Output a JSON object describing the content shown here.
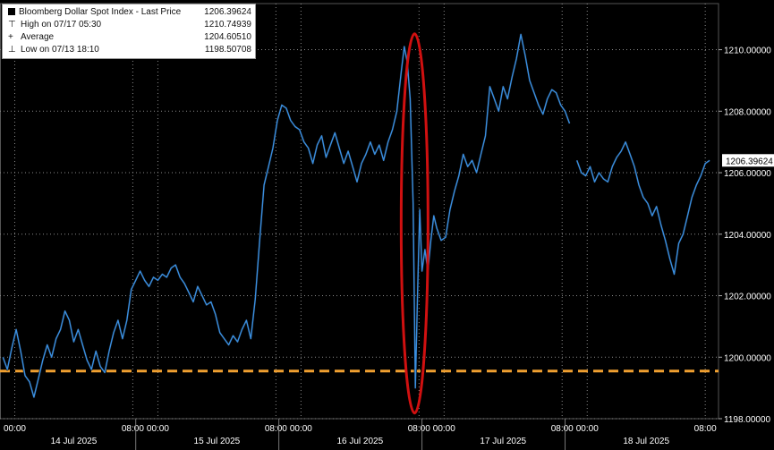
{
  "legend": {
    "title": "Bloomberg Dollar Spot Index - Last Price",
    "last_value": "1206.39624",
    "rows": [
      {
        "label": "High on 07/17 05:30",
        "value": "1210.74939",
        "marker": "⊤"
      },
      {
        "label": "Average",
        "value": "1204.60510",
        "marker": "+"
      },
      {
        "label": "Low on 07/13 18:10",
        "value": "1198.50708",
        "marker": "⊥"
      }
    ]
  },
  "colors": {
    "background": "#000000",
    "price_line": "#3a8fe0",
    "price_line_dark": "#0b0f14",
    "reference_line": "#f0a030",
    "highlight_ellipse": "#d01010",
    "grid": "#8a8a8a",
    "axis_text": "#ffffff"
  },
  "chart_data": {
    "type": "line",
    "title": "Bloomberg Dollar Spot Index - Last Price",
    "xlabel": "",
    "ylabel": "",
    "ylim": [
      1198.0,
      1211.5
    ],
    "y_ticks": [
      "1198.00000",
      "1200.00000",
      "1202.00000",
      "1204.00000",
      "1206.00000",
      "1208.00000",
      "1210.00000"
    ],
    "y_tick_values": [
      1198,
      1200,
      1202,
      1204,
      1206,
      1208,
      1210
    ],
    "last_price_label": "1206.39624",
    "x_time_labels": [
      "00:00",
      "08:00",
      "00:00",
      "08:00",
      "00:00",
      "08:00",
      "00:00",
      "08:00",
      "00:00",
      "08:00"
    ],
    "x_day_labels": [
      "14 Jul 2025",
      "15 Jul 2025",
      "16 Jul 2025",
      "17 Jul 2025",
      "18 Jul 2025"
    ],
    "grid": true,
    "reference_line": {
      "value": 1199.55,
      "style": "dashed"
    },
    "highlight": {
      "shape": "ellipse",
      "around": "16 Jul 2025 08:00 spike"
    },
    "series": [
      {
        "points": [
          [
            0.0,
            1200.0
          ],
          [
            0.3,
            1199.6
          ],
          [
            0.6,
            1200.3
          ],
          [
            0.9,
            1200.9
          ],
          [
            1.2,
            1200.2
          ],
          [
            1.5,
            1199.4
          ],
          [
            1.8,
            1199.2
          ],
          [
            2.1,
            1198.7
          ],
          [
            2.4,
            1199.3
          ],
          [
            2.7,
            1199.9
          ],
          [
            3.0,
            1200.4
          ],
          [
            3.3,
            1200.0
          ],
          [
            3.6,
            1200.6
          ],
          [
            3.9,
            1200.9
          ],
          [
            4.2,
            1201.5
          ],
          [
            4.5,
            1201.2
          ],
          [
            4.8,
            1200.5
          ],
          [
            5.1,
            1200.9
          ],
          [
            5.4,
            1200.4
          ],
          [
            5.7,
            1199.9
          ],
          [
            6.0,
            1199.6
          ],
          [
            6.3,
            1200.2
          ],
          [
            6.6,
            1199.7
          ],
          [
            6.9,
            1199.5
          ],
          [
            7.2,
            1200.2
          ],
          [
            7.5,
            1200.8
          ],
          [
            7.8,
            1201.2
          ],
          [
            8.1,
            1200.6
          ],
          [
            8.4,
            1201.2
          ],
          [
            8.7,
            1202.2
          ],
          [
            9.0,
            1202.5
          ],
          [
            9.3,
            1202.8
          ],
          [
            9.6,
            1202.5
          ],
          [
            9.9,
            1202.3
          ],
          [
            10.2,
            1202.6
          ],
          [
            10.5,
            1202.5
          ],
          [
            10.8,
            1202.7
          ],
          [
            11.1,
            1202.6
          ],
          [
            11.4,
            1202.9
          ],
          [
            11.7,
            1203.0
          ],
          [
            12.0,
            1202.6
          ],
          [
            12.3,
            1202.4
          ],
          [
            12.6,
            1202.1
          ],
          [
            12.9,
            1201.8
          ],
          [
            13.2,
            1202.3
          ],
          [
            13.5,
            1202.0
          ],
          [
            13.8,
            1201.7
          ],
          [
            14.1,
            1201.8
          ],
          [
            14.4,
            1201.4
          ],
          [
            14.7,
            1200.8
          ],
          [
            15.0,
            1200.6
          ],
          [
            15.3,
            1200.4
          ],
          [
            15.6,
            1200.7
          ],
          [
            15.9,
            1200.5
          ],
          [
            16.2,
            1200.9
          ],
          [
            16.5,
            1201.2
          ],
          [
            16.8,
            1200.6
          ],
          [
            17.1,
            1201.9
          ],
          [
            17.4,
            1203.8
          ],
          [
            17.7,
            1205.6
          ],
          [
            18.0,
            1206.2
          ],
          [
            18.3,
            1206.8
          ],
          [
            18.6,
            1207.7
          ],
          [
            18.9,
            1208.2
          ],
          [
            19.2,
            1208.1
          ],
          [
            19.5,
            1207.7
          ],
          [
            19.8,
            1207.5
          ],
          [
            20.1,
            1207.4
          ],
          [
            20.4,
            1207.0
          ],
          [
            20.7,
            1206.8
          ],
          [
            21.0,
            1206.3
          ],
          [
            21.3,
            1206.9
          ],
          [
            21.6,
            1207.2
          ],
          [
            21.9,
            1206.5
          ],
          [
            22.2,
            1206.9
          ],
          [
            22.5,
            1207.3
          ],
          [
            22.8,
            1206.8
          ],
          [
            23.1,
            1206.3
          ],
          [
            23.4,
            1206.7
          ],
          [
            23.7,
            1206.2
          ],
          [
            24.0,
            1205.7
          ],
          [
            24.3,
            1206.3
          ],
          [
            24.6,
            1206.6
          ],
          [
            24.9,
            1207.0
          ],
          [
            25.2,
            1206.6
          ],
          [
            25.5,
            1206.9
          ],
          [
            25.8,
            1206.4
          ],
          [
            26.1,
            1207.0
          ],
          [
            26.4,
            1207.4
          ],
          [
            26.7,
            1208.0
          ],
          [
            27.0,
            1209.3
          ],
          [
            27.2,
            1210.1
          ],
          [
            27.4,
            1209.6
          ],
          [
            27.6,
            1208.4
          ],
          [
            27.8,
            1205.0
          ],
          [
            27.95,
            1199.0
          ],
          [
            28.1,
            1202.0
          ],
          [
            28.25,
            1204.8
          ],
          [
            28.4,
            1202.8
          ],
          [
            28.6,
            1203.5
          ],
          [
            28.8,
            1202.8
          ],
          [
            29.0,
            1203.8
          ],
          [
            29.2,
            1204.6
          ],
          [
            29.4,
            1204.2
          ],
          [
            29.7,
            1203.8
          ],
          [
            30.0,
            1203.9
          ],
          [
            30.3,
            1204.8
          ],
          [
            30.6,
            1205.4
          ],
          [
            30.9,
            1205.9
          ],
          [
            31.2,
            1206.6
          ],
          [
            31.5,
            1206.2
          ],
          [
            31.8,
            1206.4
          ],
          [
            32.1,
            1206.0
          ],
          [
            32.4,
            1206.6
          ],
          [
            32.7,
            1207.2
          ],
          [
            33.0,
            1208.8
          ],
          [
            33.3,
            1208.4
          ],
          [
            33.6,
            1208.0
          ],
          [
            33.9,
            1208.8
          ],
          [
            34.2,
            1208.4
          ],
          [
            34.5,
            1209.1
          ],
          [
            34.8,
            1209.7
          ],
          [
            35.1,
            1210.5
          ],
          [
            35.4,
            1209.8
          ],
          [
            35.7,
            1209.0
          ],
          [
            36.0,
            1208.6
          ],
          [
            36.3,
            1208.2
          ],
          [
            36.6,
            1207.9
          ],
          [
            36.9,
            1208.4
          ],
          [
            37.2,
            1208.7
          ],
          [
            37.5,
            1208.6
          ],
          [
            37.8,
            1208.2
          ],
          [
            38.1,
            1208.0
          ],
          [
            38.4,
            1207.6
          ]
        ]
      },
      {
        "points": [
          [
            38.9,
            1206.4
          ],
          [
            39.2,
            1206.0
          ],
          [
            39.5,
            1205.9
          ],
          [
            39.8,
            1206.2
          ],
          [
            40.1,
            1205.7
          ],
          [
            40.4,
            1206.0
          ],
          [
            40.7,
            1205.8
          ],
          [
            41.0,
            1205.7
          ],
          [
            41.3,
            1206.2
          ],
          [
            41.6,
            1206.5
          ],
          [
            41.9,
            1206.7
          ],
          [
            42.2,
            1207.0
          ],
          [
            42.5,
            1206.6
          ],
          [
            42.8,
            1206.2
          ],
          [
            43.1,
            1205.6
          ],
          [
            43.4,
            1205.2
          ],
          [
            43.7,
            1205.0
          ],
          [
            44.0,
            1204.6
          ],
          [
            44.3,
            1204.9
          ],
          [
            44.6,
            1204.3
          ],
          [
            44.9,
            1203.8
          ],
          [
            45.2,
            1203.2
          ],
          [
            45.5,
            1202.7
          ],
          [
            45.8,
            1203.7
          ],
          [
            46.1,
            1204.0
          ],
          [
            46.4,
            1204.6
          ],
          [
            46.7,
            1205.2
          ],
          [
            47.0,
            1205.6
          ],
          [
            47.3,
            1205.9
          ],
          [
            47.6,
            1206.3
          ],
          [
            47.9,
            1206.4
          ]
        ]
      }
    ]
  }
}
